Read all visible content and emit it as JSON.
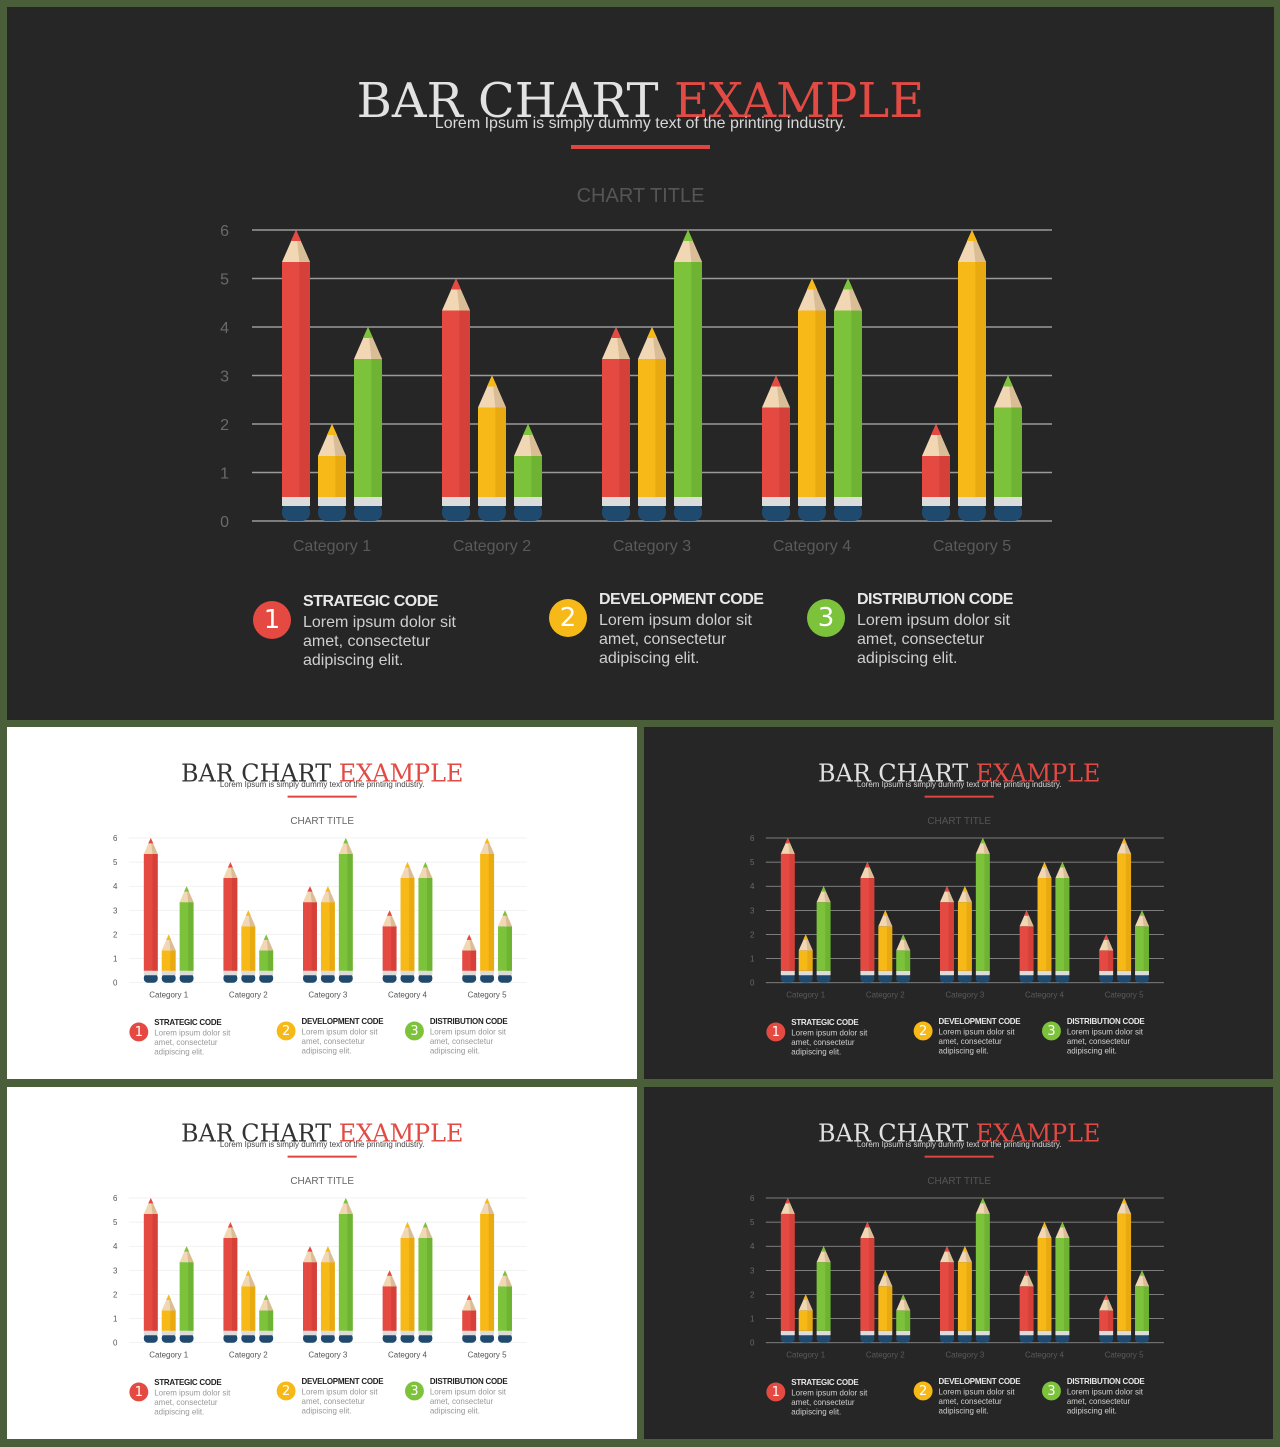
{
  "slide": {
    "title_main": "BAR CHART",
    "title_accent": "EXAMPLE",
    "subtitle": "Lorem Ipsum is simply dummy text of the printing industry."
  },
  "legend": [
    {
      "number": "1",
      "title": "STRATEGIC CODE",
      "text": "Lorem ipsum dolor sit amet, consectetur adipiscing elit.",
      "color": "#e54a42"
    },
    {
      "number": "2",
      "title": "DEVELOPMENT CODE",
      "text": "Lorem ipsum dolor sit amet, consectetur adipiscing elit.",
      "color": "#f7b917"
    },
    {
      "number": "3",
      "title": "DISTRIBUTION CODE",
      "text": "Lorem ipsum dolor sit amet, consectetur adipiscing elit.",
      "color": "#7cc33b"
    }
  ],
  "colors": {
    "red": "#e54a42",
    "yellow": "#f7b917",
    "green": "#7cc33b",
    "eraser": "#1f4a6e",
    "frame": "#4a5e3a"
  },
  "chart_data": {
    "type": "bar",
    "title": "CHART TITLE",
    "categories": [
      "Category 1",
      "Category 2",
      "Category 3",
      "Category 4",
      "Category 5"
    ],
    "series": [
      {
        "values": [
          6,
          5,
          4,
          3,
          2
        ]
      },
      {
        "values": [
          2,
          3,
          4,
          5,
          6
        ]
      },
      {
        "values": [
          4,
          2,
          6,
          5,
          3
        ]
      }
    ],
    "ylim": [
      0,
      6
    ],
    "yticks": [
      "0",
      "1",
      "2",
      "3",
      "4",
      "5",
      "6"
    ],
    "grid": true,
    "bar_style": "pencil"
  }
}
